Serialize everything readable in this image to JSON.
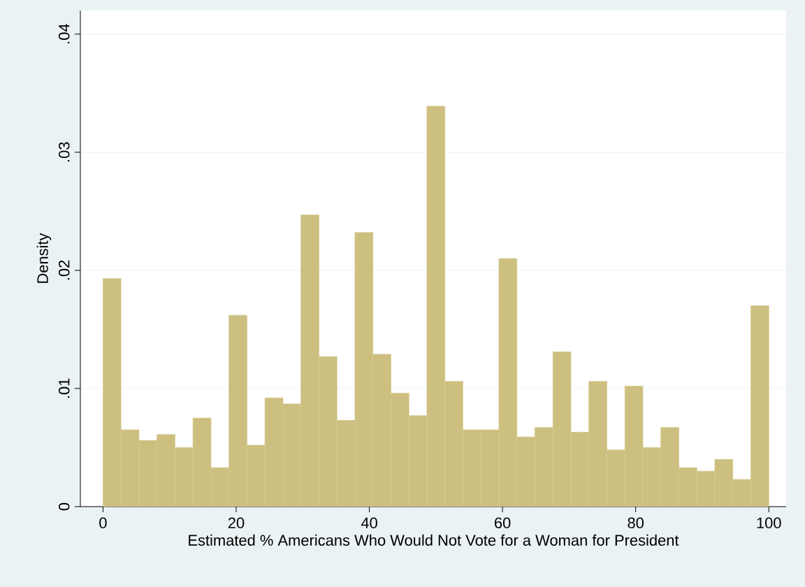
{
  "chart_data": {
    "type": "histogram",
    "xlabel": "Estimated % Americans Who Would Not Vote for a Woman for President",
    "ylabel": "Density",
    "bins": [
      0,
      2.7,
      5.41,
      8.11,
      10.81,
      13.51,
      16.22,
      18.92,
      21.62,
      24.32,
      27.03,
      29.73,
      32.43,
      35.14,
      37.84,
      40.54,
      43.24,
      45.95,
      48.65,
      51.35,
      54.05,
      56.76,
      59.46,
      62.16,
      64.86,
      67.57,
      70.27,
      72.97,
      75.68,
      78.38,
      81.08,
      83.78,
      86.49,
      89.19,
      91.89,
      94.59,
      97.3,
      100
    ],
    "values": [
      0.0193,
      0.0065,
      0.0056,
      0.0061,
      0.005,
      0.0075,
      0.0033,
      0.0162,
      0.0052,
      0.0092,
      0.0087,
      0.0247,
      0.0127,
      0.0073,
      0.0232,
      0.0129,
      0.0096,
      0.0077,
      0.0339,
      0.0106,
      0.0065,
      0.0065,
      0.021,
      0.0059,
      0.0067,
      0.0131,
      0.0063,
      0.0106,
      0.0048,
      0.0102,
      0.005,
      0.0067,
      0.0033,
      0.003,
      0.004,
      0.0023,
      0.017
    ],
    "color": "#cdbf7f",
    "xlim": [
      -3.4,
      102.6
    ],
    "ylim": [
      0,
      0.042
    ],
    "xticks": [
      0,
      20,
      40,
      60,
      80,
      100
    ],
    "yticks": [
      0,
      {
        "value": 0.01,
        "label": ".01"
      },
      {
        "value": 0.02,
        "label": ".02"
      },
      {
        "value": 0.03,
        "label": ".03"
      },
      {
        "value": 0.04,
        "label": ".04"
      }
    ],
    "grid": "y"
  }
}
